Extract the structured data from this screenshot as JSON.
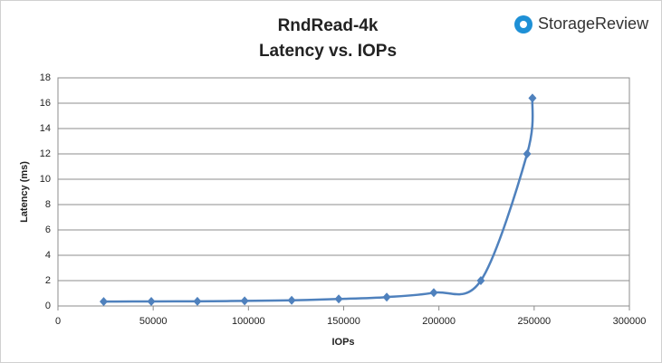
{
  "chart_data": {
    "type": "line",
    "title": "RndRead-4k",
    "subtitle": "Latency vs. IOPs",
    "watermark": "StorageReview",
    "x_label": "IOPs",
    "y_label": "Latency (ms)",
    "series": [
      {
        "name": "Latency",
        "color": "#4f81bd",
        "x": [
          24000,
          49000,
          73200,
          98000,
          122700,
          147400,
          172600,
          197300,
          222000,
          246300,
          249100
        ],
        "values": [
          0.35,
          0.36,
          0.37,
          0.4,
          0.45,
          0.55,
          0.7,
          1.05,
          2.0,
          12.0,
          16.4
        ]
      }
    ],
    "xlim": [
      0,
      300000
    ],
    "xticks": [
      0,
      50000,
      100000,
      150000,
      200000,
      250000,
      300000
    ],
    "ylim": [
      0,
      18
    ],
    "yticks": [
      0,
      2,
      4,
      6,
      8,
      10,
      12,
      14,
      16,
      18
    ],
    "grid": true,
    "smooth": true
  }
}
